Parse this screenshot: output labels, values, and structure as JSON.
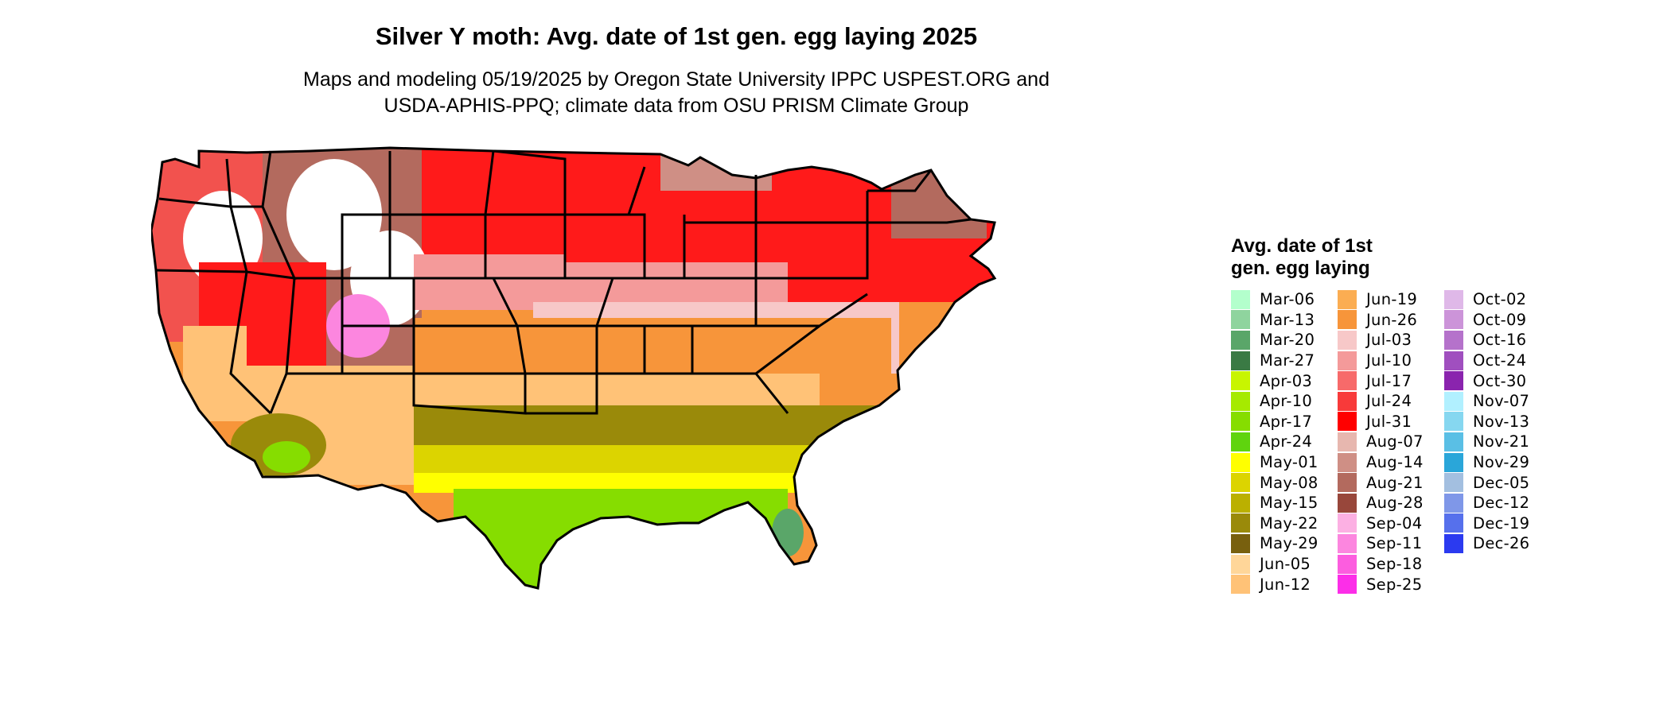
{
  "title": "Silver Y moth: Avg. date of 1st gen. egg laying 2025",
  "subtitle_line1": "Maps and modeling 05/19/2025 by Oregon State University IPPC USPEST.ORG and",
  "subtitle_line2": "USDA-APHIS-PPQ; climate data from OSU PRISM Climate Group",
  "legend": {
    "title": "Avg. date of 1st gen. egg laying",
    "columns": [
      [
        {
          "label": "Mar-06",
          "color": "#b3ffcc"
        },
        {
          "label": "Mar-13",
          "color": "#8fd49e"
        },
        {
          "label": "Mar-20",
          "color": "#5aa669"
        },
        {
          "label": "Mar-27",
          "color": "#3a7a44"
        },
        {
          "label": "Apr-03",
          "color": "#c8f500"
        },
        {
          "label": "Apr-10",
          "color": "#a6ea00"
        },
        {
          "label": "Apr-17",
          "color": "#86dd00"
        },
        {
          "label": "Apr-24",
          "color": "#5fd40e"
        },
        {
          "label": "May-01",
          "color": "#ffff00"
        },
        {
          "label": "May-08",
          "color": "#dcd400"
        },
        {
          "label": "May-15",
          "color": "#bbb000"
        },
        {
          "label": "May-22",
          "color": "#9a8a0a"
        },
        {
          "label": "May-29",
          "color": "#78600e"
        },
        {
          "label": "Jun-05",
          "color": "#ffd699"
        },
        {
          "label": "Jun-12",
          "color": "#ffc277"
        }
      ],
      [
        {
          "label": "Jun-19",
          "color": "#fbad52"
        },
        {
          "label": "Jun-26",
          "color": "#f7953a"
        },
        {
          "label": "Jul-03",
          "color": "#f7c8c8"
        },
        {
          "label": "Jul-10",
          "color": "#f49a9a"
        },
        {
          "label": "Jul-17",
          "color": "#f76a6a"
        },
        {
          "label": "Jul-24",
          "color": "#f83a3a"
        },
        {
          "label": "Jul-31",
          "color": "#ff0000"
        },
        {
          "label": "Aug-07",
          "color": "#e7b7af"
        },
        {
          "label": "Aug-14",
          "color": "#cf8f85"
        },
        {
          "label": "Aug-21",
          "color": "#b36a5e"
        },
        {
          "label": "Aug-28",
          "color": "#98473b"
        },
        {
          "label": "Sep-04",
          "color": "#fcb0e3"
        },
        {
          "label": "Sep-11",
          "color": "#fc86df"
        },
        {
          "label": "Sep-18",
          "color": "#fc5ddf"
        },
        {
          "label": "Sep-25",
          "color": "#fc2ee8"
        }
      ],
      [
        {
          "label": "Oct-02",
          "color": "#dfb8e8"
        },
        {
          "label": "Oct-09",
          "color": "#cc94d9"
        },
        {
          "label": "Oct-16",
          "color": "#b572cb"
        },
        {
          "label": "Oct-24",
          "color": "#a04fbf"
        },
        {
          "label": "Oct-30",
          "color": "#8a24ae"
        },
        {
          "label": "Nov-07",
          "color": "#b1f0ff"
        },
        {
          "label": "Nov-13",
          "color": "#86d7f0"
        },
        {
          "label": "Nov-21",
          "color": "#5abfe5"
        },
        {
          "label": "Nov-29",
          "color": "#2aa6d9"
        },
        {
          "label": "Dec-05",
          "color": "#a3bfe0"
        },
        {
          "label": "Dec-12",
          "color": "#7f97e8"
        },
        {
          "label": "Dec-19",
          "color": "#5670ec"
        },
        {
          "label": "Dec-26",
          "color": "#2b3af0"
        }
      ]
    ]
  },
  "map_colors": {
    "pnw": "#f2524e",
    "mountain": "#b36a5e",
    "snow": "#ffffff",
    "pink": "#fc86df",
    "red": "#ff1a1a",
    "pinkred": "#f49a9a",
    "light_pink": "#f7c8c8",
    "orange": "#f7953a",
    "light_orange": "#ffc277",
    "olive": "#9a8a0a",
    "yellow_olive": "#dcd400",
    "yellow": "#ffff00",
    "green": "#86dd00",
    "dark_green": "#5aa669",
    "brownish": "#cf8f85",
    "ca_coast": "#ffc277"
  }
}
